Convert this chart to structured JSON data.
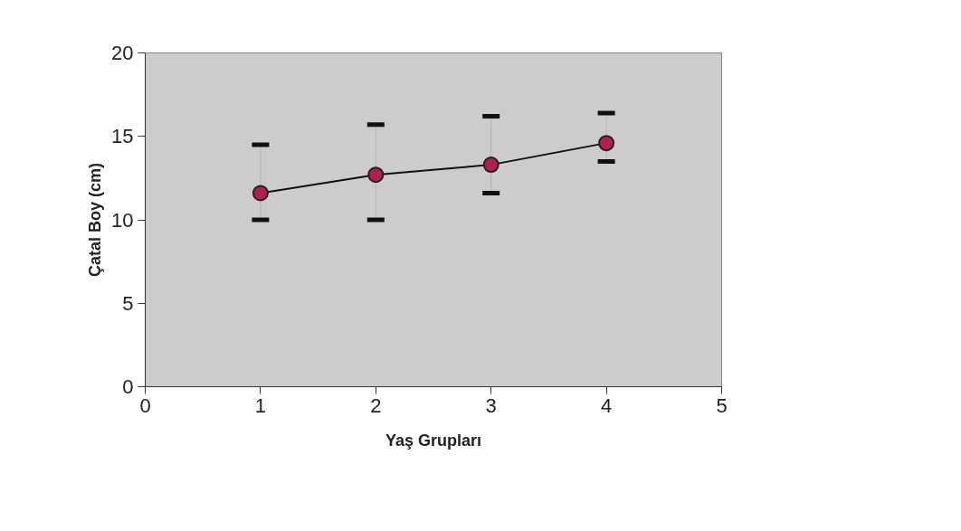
{
  "chart_data": {
    "type": "line",
    "xlabel": "Yaş Grupları",
    "ylabel": "Çatal Boy (cm)",
    "x": [
      1,
      2,
      3,
      4
    ],
    "series": [
      {
        "color": "#b0204f",
        "values": [
          11.6,
          12.7,
          13.3,
          14.6
        ],
        "errors": [
          [
            10.0,
            14.5
          ],
          [
            10.0,
            15.7
          ],
          [
            11.6,
            16.2
          ],
          [
            13.5,
            16.4
          ]
        ]
      }
    ],
    "xlim": [
      0,
      5
    ],
    "xticks": [
      0,
      1,
      2,
      3,
      4,
      5
    ],
    "ylim": [
      0,
      20
    ],
    "yticks": [
      0,
      5,
      10,
      15,
      20
    ],
    "marker": "circle",
    "line_style": "solid",
    "grid": false
  }
}
